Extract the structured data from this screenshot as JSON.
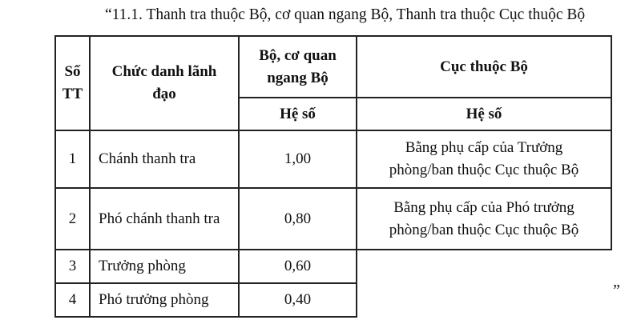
{
  "title": "“11.1. Thanh tra thuộc Bộ, cơ quan ngang Bộ, Thanh tra thuộc Cục thuộc Bộ",
  "table": {
    "headers": {
      "stt": "Số TT",
      "position": "Chức danh lãnh đạo",
      "ministry": "Bộ, cơ quan ngang Bộ",
      "department": "Cục thuộc Bộ",
      "ministry_sub": "Hệ số",
      "department_sub": "Hệ số"
    },
    "rows": [
      {
        "stt": "1",
        "position": "Chánh thanh tra",
        "ministry": "1,00",
        "department": "Bằng phụ cấp của Trưởng phòng/ban thuộc Cục thuộc Bộ"
      },
      {
        "stt": "2",
        "position": "Phó chánh thanh tra",
        "ministry": "0,80",
        "department": "Bằng phụ cấp của Phó trưởng phòng/ban thuộc Cục thuộc Bộ"
      },
      {
        "stt": "3",
        "position": "Trưởng phòng",
        "ministry": "0,60"
      },
      {
        "stt": "4",
        "position": "Phó trưởng phòng",
        "ministry": "0,40"
      }
    ]
  },
  "closing_quote": "”"
}
